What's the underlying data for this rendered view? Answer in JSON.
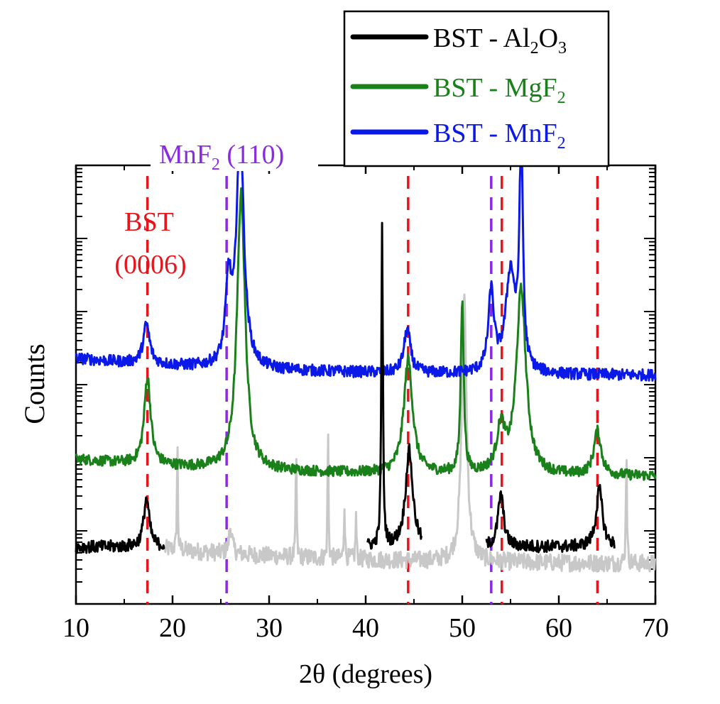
{
  "chart_data": {
    "type": "line",
    "title": "",
    "xlabel": "2θ (degrees)",
    "ylabel": "Counts",
    "xlim": [
      10,
      70
    ],
    "ylim": [
      0,
      1
    ],
    "y_scale": "log (counts, arbitrary offset)",
    "x_ticks": [
      10,
      20,
      30,
      40,
      50,
      60,
      70
    ],
    "x_tick_labels": [
      "10",
      "20",
      "30",
      "40",
      "50",
      "60",
      "70"
    ],
    "legend_position": "top-right",
    "series": [
      {
        "name_main": "BST - Al",
        "name_sub1": "2",
        "name_mid": "O",
        "name_sub2": "3",
        "color": "#000000",
        "baseline": 0.13,
        "noise": 0.014,
        "peaks": [
          {
            "x": 17.3,
            "height": 0.11,
            "width": 0.35
          },
          {
            "x": 41.7,
            "height": 0.74,
            "width": 0.09
          },
          {
            "x": 44.5,
            "height": 0.22,
            "width": 0.45
          },
          {
            "x": 54.0,
            "height": 0.12,
            "width": 0.35
          },
          {
            "x": 64.2,
            "height": 0.13,
            "width": 0.4
          }
        ],
        "segments": [
          [
            10.0,
            19.2
          ],
          [
            40.2,
            45.8
          ],
          [
            52.5,
            65.8
          ]
        ],
        "substrate_color": "#c8c8c8",
        "substrate_peaks": [
          {
            "x": 20.5,
            "height": 0.26,
            "width": 0.05
          },
          {
            "x": 26.0,
            "height": 0.06,
            "width": 0.2
          },
          {
            "x": 32.8,
            "height": 0.26,
            "width": 0.05
          },
          {
            "x": 36.1,
            "height": 0.32,
            "width": 0.05
          },
          {
            "x": 37.8,
            "height": 0.13,
            "width": 0.06
          },
          {
            "x": 39.0,
            "height": 0.1,
            "width": 0.06
          },
          {
            "x": 50.2,
            "height": 0.6,
            "width": 0.3
          },
          {
            "x": 67.0,
            "height": 0.27,
            "width": 0.06
          }
        ]
      },
      {
        "name_main": "BST - MgF",
        "name_sub1": "2",
        "color": "#1a801a",
        "baseline": 0.29,
        "noise": 0.012,
        "peaks": [
          {
            "x": 17.4,
            "height": 0.2,
            "width": 0.4
          },
          {
            "x": 27.1,
            "height": 0.63,
            "width": 0.5
          },
          {
            "x": 44.4,
            "height": 0.26,
            "width": 0.55
          },
          {
            "x": 50.0,
            "height": 0.4,
            "width": 0.18
          },
          {
            "x": 54.0,
            "height": 0.1,
            "width": 0.5
          },
          {
            "x": 56.1,
            "height": 0.42,
            "width": 0.6
          },
          {
            "x": 64.0,
            "height": 0.1,
            "width": 0.45
          }
        ],
        "segments": [
          [
            10.0,
            70.0
          ]
        ]
      },
      {
        "name_main": "BST - MnF",
        "name_sub1": "2",
        "color": "#0a18e8",
        "baseline": 0.52,
        "noise": 0.013,
        "peaks": [
          {
            "x": 17.3,
            "height": 0.09,
            "width": 0.4
          },
          {
            "x": 25.8,
            "height": 0.18,
            "width": 0.35
          },
          {
            "x": 27.0,
            "height": 0.55,
            "width": 0.45
          },
          {
            "x": 44.3,
            "height": 0.1,
            "width": 0.4
          },
          {
            "x": 53.0,
            "height": 0.18,
            "width": 0.35
          },
          {
            "x": 55.0,
            "height": 0.23,
            "width": 0.6
          },
          {
            "x": 56.1,
            "height": 0.55,
            "width": 0.2
          }
        ],
        "segments": [
          [
            10.0,
            70.0
          ]
        ]
      }
    ],
    "reference_lines": [
      {
        "x": 17.4,
        "color": "#e8141c",
        "phase": "BST"
      },
      {
        "x": 44.4,
        "color": "#e8141c",
        "phase": "BST"
      },
      {
        "x": 54.1,
        "color": "#e8141c",
        "phase": "BST"
      },
      {
        "x": 64.0,
        "color": "#e8141c",
        "phase": "BST"
      },
      {
        "x": 25.6,
        "color": "#8a2be2",
        "phase": "MnF2"
      },
      {
        "x": 53.0,
        "color": "#8a2be2",
        "phase": "MnF2"
      }
    ],
    "annotations": {
      "bst_line1": "BST",
      "bst_line2": "(0006)",
      "bst_color": "#e8141c",
      "mnf2_main": "MnF",
      "mnf2_sub": "2",
      "mnf2_rest": " (110)",
      "mnf2_color": "#8a2be2"
    }
  }
}
